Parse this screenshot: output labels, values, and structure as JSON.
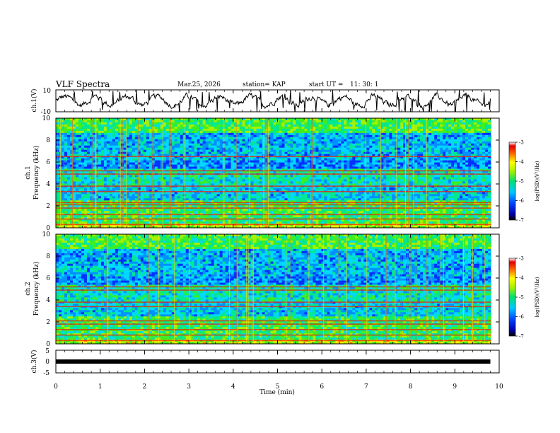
{
  "header": {
    "title": "VLF Spectra",
    "date": "Mar.25, 2026",
    "station": "station= KAP",
    "start_label": "start  UT  =",
    "start_time": "11: 30: 1"
  },
  "chart_data": [
    {
      "type": "line",
      "panel": "ch1-waveform",
      "ylabel": "ch.1(V)",
      "ylim": [
        -10,
        10
      ],
      "yticks": [
        "10",
        "-10"
      ],
      "x_range_min": [
        0,
        9.8
      ],
      "description_series": "bandpassed waveform amplitude (V)"
    },
    {
      "type": "heatmap",
      "panel": "ch1-spectrogram",
      "ylabel_line1": "ch.1",
      "ylabel_line2": "Frequency  (kHz)",
      "ylim": [
        0,
        10
      ],
      "yticks": [
        "0",
        "2",
        "4",
        "6",
        "8",
        "10"
      ],
      "colorbar": {
        "label": "log(PSD)(V²/Hz)",
        "range": [
          -7,
          -3
        ],
        "ticks": [
          "-3",
          "-4",
          "-5",
          "-6",
          "-7"
        ]
      },
      "bands_khz": [
        0.3,
        0.8,
        1.2,
        1.8,
        2.1,
        2.3,
        3.3,
        3.8,
        4.9,
        5.2,
        6.5
      ]
    },
    {
      "type": "heatmap",
      "panel": "ch2-spectrogram",
      "ylabel_line1": "ch.2",
      "ylabel_line2": "Frequency  (kHz)",
      "ylim": [
        0,
        10
      ],
      "yticks": [
        "0",
        "2",
        "4",
        "6",
        "8",
        "10"
      ],
      "colorbar": {
        "label": "log(PSD)(V²/Hz)",
        "range": [
          -7,
          -3
        ],
        "ticks": [
          "-3",
          "-4",
          "-5",
          "-6",
          "-7"
        ]
      },
      "bands_khz": [
        0.3,
        0.8,
        1.3,
        1.8,
        2.1,
        3.4,
        3.8,
        4.9,
        5.2
      ]
    },
    {
      "type": "line",
      "panel": "ch3-signal",
      "ylabel": "ch.3(V)",
      "ylim": [
        -5,
        5
      ],
      "yticks": [
        "5",
        "0",
        "-5"
      ],
      "level_v": 0
    }
  ],
  "xaxis": {
    "label": "Time  (min)",
    "range": [
      0,
      10
    ],
    "ticks": [
      "0",
      "1",
      "2",
      "3",
      "4",
      "5",
      "6",
      "7",
      "8",
      "9",
      "10"
    ]
  }
}
